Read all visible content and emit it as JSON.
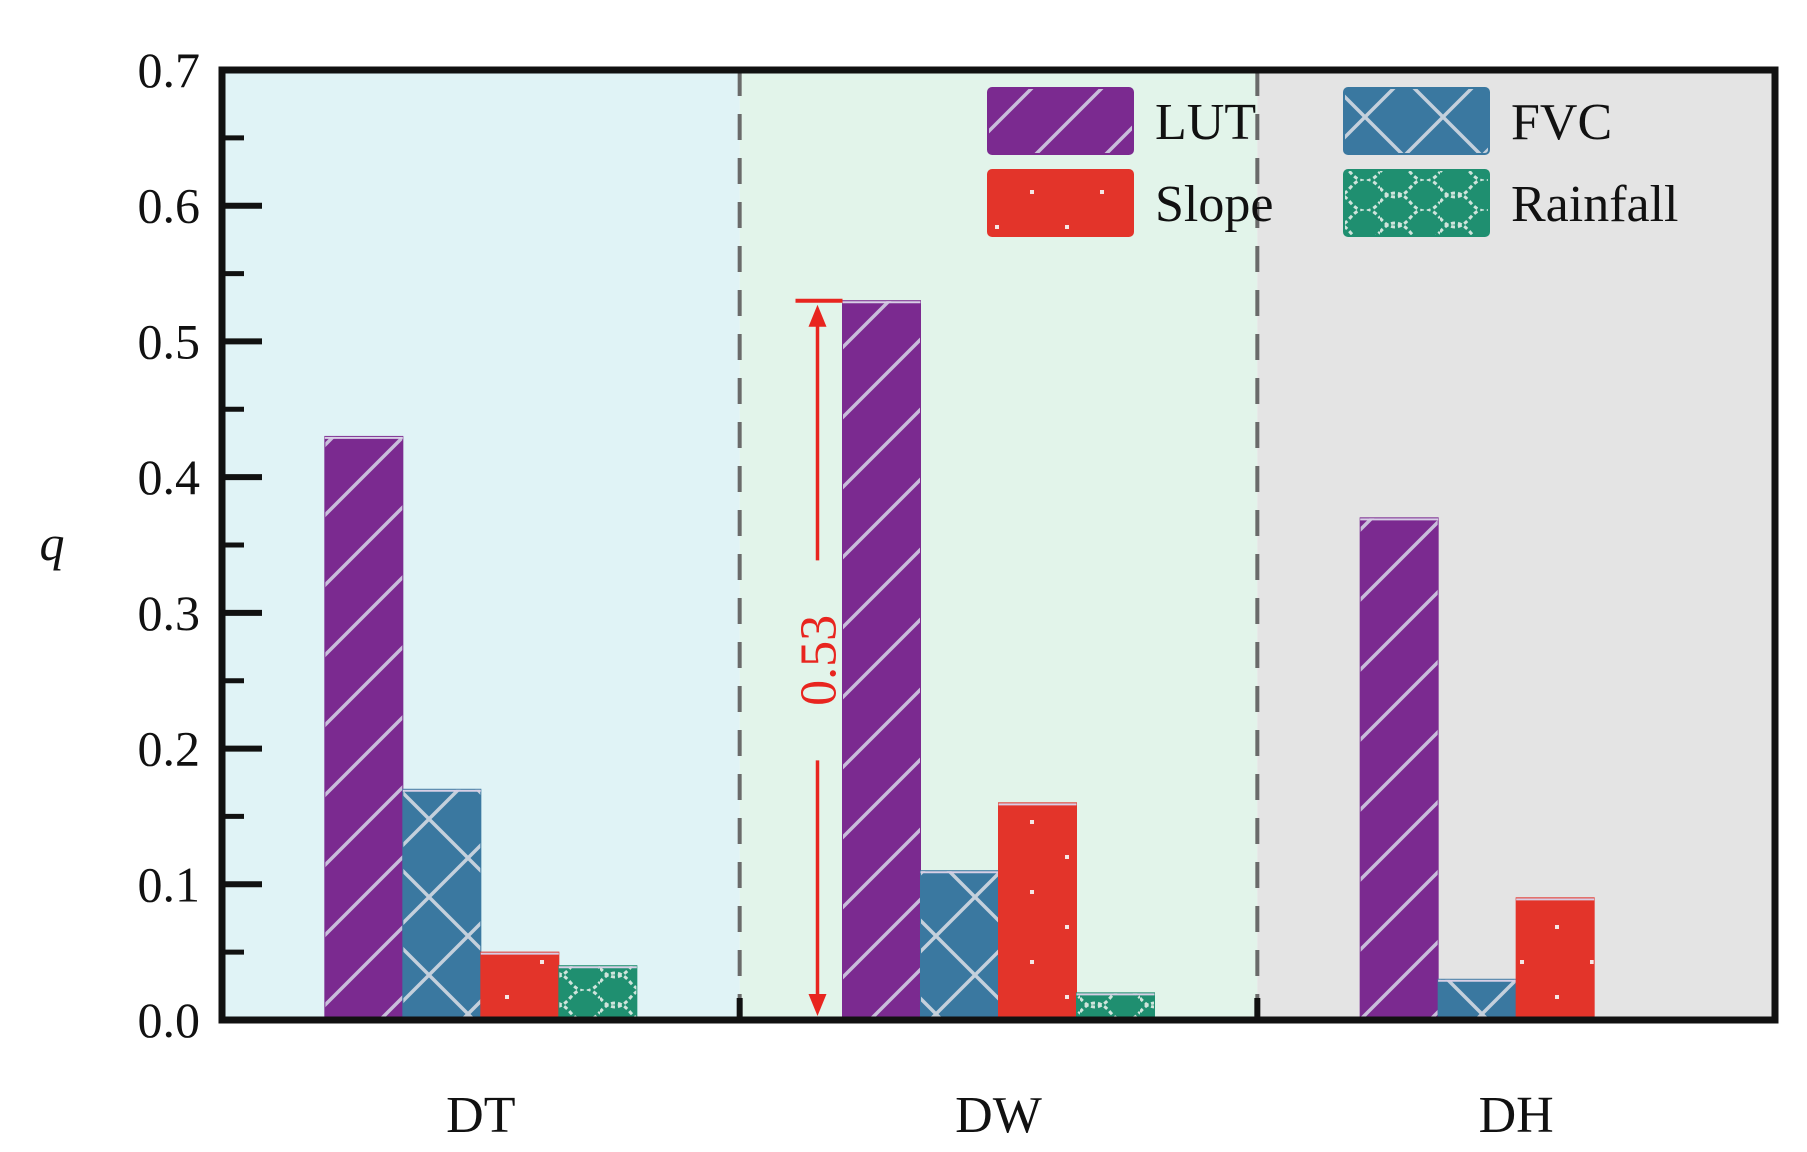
{
  "chart_data": {
    "type": "bar",
    "title": "",
    "xlabel": "",
    "ylabel": "q",
    "ylim": [
      0,
      0.7
    ],
    "yticks": [
      0.0,
      0.1,
      0.2,
      0.3,
      0.4,
      0.5,
      0.6,
      0.7
    ],
    "ytick_labels": [
      "0.0",
      "0.1",
      "0.2",
      "0.3",
      "0.4",
      "0.5",
      "0.6",
      "0.7"
    ],
    "categories": [
      "DT",
      "DW",
      "DH"
    ],
    "series": [
      {
        "name": "LUT",
        "values": [
          0.43,
          0.53,
          0.37
        ],
        "color": "#7b2a90",
        "pattern": "diagonal"
      },
      {
        "name": "FVC",
        "values": [
          0.17,
          0.11,
          0.03
        ],
        "color": "#3a78a0",
        "pattern": "crosshatch"
      },
      {
        "name": "Slope",
        "values": [
          0.05,
          0.16,
          0.09
        ],
        "color": "#e3342a",
        "pattern": "dots"
      },
      {
        "name": "Rainfall",
        "values": [
          0.04,
          0.02,
          0.0
        ],
        "color": "#1f8f70",
        "pattern": "wave"
      }
    ],
    "region_colors": [
      "#e0f3f6",
      "#e2f4ea",
      "#e4e4e4"
    ],
    "legend_position": "top-right",
    "annotation": {
      "text": "0.53",
      "category": "DW",
      "value": 0.53,
      "color": "#e8251f"
    }
  }
}
